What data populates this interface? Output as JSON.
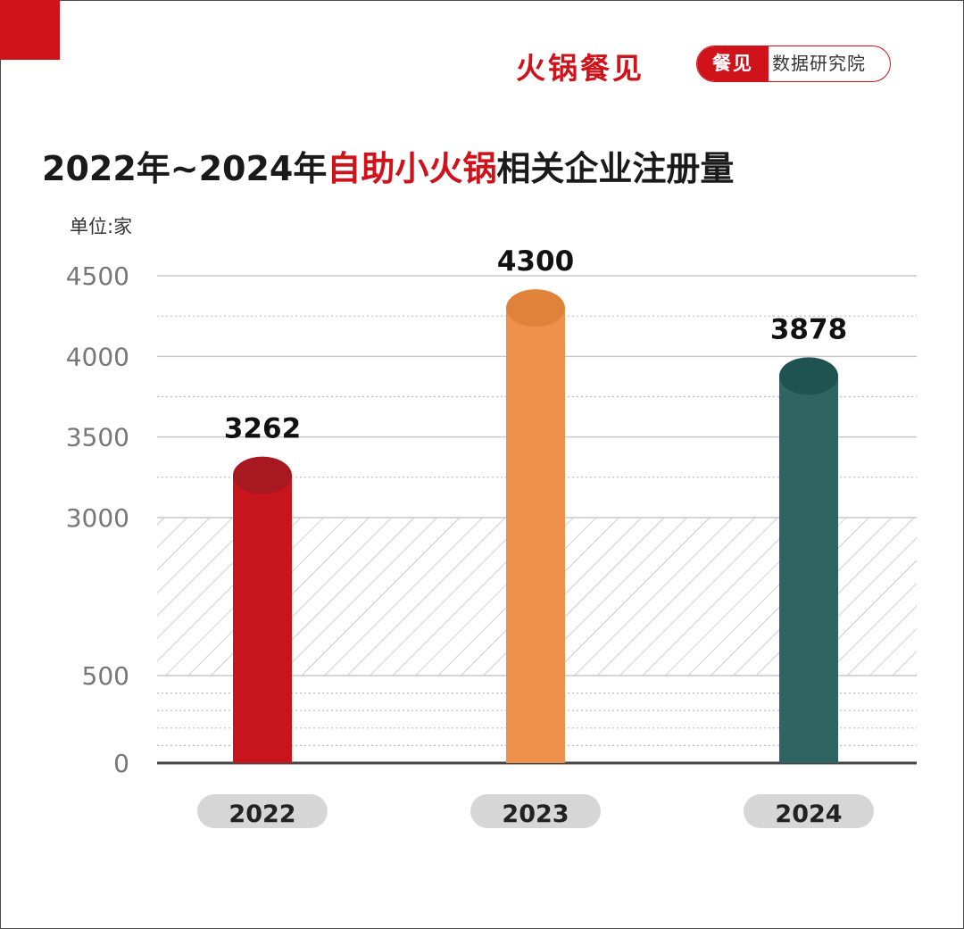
{
  "header": {
    "brand": "火锅餐见",
    "badge_left": "餐见",
    "badge_right": "数据研究院"
  },
  "title": {
    "prefix": "2022年~2024年",
    "highlight": "自助小火锅",
    "suffix": "相关企业注册量"
  },
  "unit_label": "单位:家",
  "colors": {
    "brand_red": "#d0121b",
    "bar_2022": "#c8141c",
    "bar_2023": "#ee914c",
    "bar_2024": "#2e6563"
  },
  "chart_data": {
    "type": "bar",
    "categories": [
      "2022",
      "2023",
      "2024"
    ],
    "values": [
      3262,
      4300,
      3878
    ],
    "value_labels": [
      "3262",
      "4300",
      "3878"
    ],
    "y_ticks": [
      "4500",
      "4000",
      "3500",
      "3000",
      "500",
      "0"
    ],
    "axis_break": [
      500,
      3000
    ],
    "ylim": [
      0,
      4500
    ],
    "grid": true,
    "bar_colors": [
      "#c8141c",
      "#ee914c",
      "#2e6563"
    ]
  }
}
